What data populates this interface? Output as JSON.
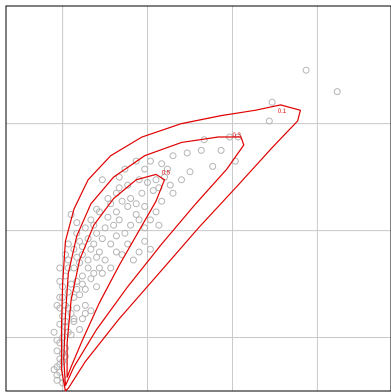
{
  "chart_data": {
    "type": "scatter",
    "title": "",
    "xlabel": "",
    "ylabel": "",
    "xlim": [
      0,
      6.8
    ],
    "ylim": [
      0,
      7.2
    ],
    "grid": true,
    "x_gridlines": [
      1,
      2.5,
      4,
      5.5
    ],
    "y_gridlines": [
      1,
      3,
      5
    ],
    "points_color": "#b4b4b4",
    "contour_color": "#e00000",
    "points": [
      [
        5.3,
        6.0
      ],
      [
        5.85,
        5.6
      ],
      [
        4.7,
        5.4
      ],
      [
        4.65,
        5.05
      ],
      [
        4.1,
        4.75
      ],
      [
        3.95,
        4.75
      ],
      [
        3.8,
        4.5
      ],
      [
        3.5,
        4.7
      ],
      [
        3.45,
        4.5
      ],
      [
        3.2,
        4.45
      ],
      [
        2.95,
        4.4
      ],
      [
        2.55,
        4.3
      ],
      [
        2.3,
        4.3
      ],
      [
        2.75,
        4.25
      ],
      [
        3.25,
        4.1
      ],
      [
        4.05,
        4.3
      ],
      [
        3.65,
        4.2
      ],
      [
        2.8,
        4.0
      ],
      [
        2.65,
        3.95
      ],
      [
        2.5,
        3.9
      ],
      [
        2.1,
        4.15
      ],
      [
        2.0,
        4.0
      ],
      [
        1.7,
        3.95
      ],
      [
        2.95,
        3.7
      ],
      [
        2.7,
        3.8
      ],
      [
        2.6,
        3.75
      ],
      [
        2.4,
        3.7
      ],
      [
        2.2,
        3.6
      ],
      [
        2.05,
        3.55
      ],
      [
        2.15,
        3.45
      ],
      [
        1.95,
        3.35
      ],
      [
        2.3,
        3.3
      ],
      [
        2.65,
        3.35
      ],
      [
        2.55,
        3.2
      ],
      [
        2.45,
        3.05
      ],
      [
        2.2,
        3.1
      ],
      [
        2.1,
        2.95
      ],
      [
        2.45,
        2.8
      ],
      [
        2.55,
        2.65
      ],
      [
        1.8,
        3.6
      ],
      [
        1.65,
        3.35
      ],
      [
        1.5,
        3.2
      ],
      [
        1.9,
        3.1
      ],
      [
        1.75,
        3.05
      ],
      [
        1.6,
        2.95
      ],
      [
        1.4,
        3.05
      ],
      [
        1.25,
        3.15
      ],
      [
        1.15,
        3.3
      ],
      [
        1.7,
        2.85
      ],
      [
        1.55,
        2.75
      ],
      [
        1.5,
        2.65
      ],
      [
        1.95,
        2.6
      ],
      [
        2.05,
        2.55
      ],
      [
        1.3,
        2.8
      ],
      [
        1.2,
        2.65
      ],
      [
        1.35,
        2.55
      ],
      [
        1.45,
        2.45
      ],
      [
        1.6,
        2.5
      ],
      [
        1.75,
        2.45
      ],
      [
        1.85,
        2.3
      ],
      [
        1.1,
        2.45
      ],
      [
        1.3,
        2.4
      ],
      [
        1.2,
        2.3
      ],
      [
        1.45,
        2.3
      ],
      [
        1.55,
        2.2
      ],
      [
        1.35,
        2.15
      ],
      [
        1.25,
        2.05
      ],
      [
        1.05,
        2.15
      ],
      [
        1.15,
        2.0
      ],
      [
        1.4,
        1.9
      ],
      [
        1.6,
        1.95
      ],
      [
        1.3,
        1.8
      ],
      [
        1.2,
        1.75
      ],
      [
        1.1,
        1.85
      ],
      [
        1.0,
        1.95
      ],
      [
        0.95,
        1.75
      ],
      [
        1.05,
        1.6
      ],
      [
        1.25,
        1.55
      ],
      [
        1.4,
        1.6
      ],
      [
        1.5,
        1.5
      ],
      [
        1.15,
        1.45
      ],
      [
        1.0,
        1.4
      ],
      [
        0.95,
        1.25
      ],
      [
        1.05,
        1.2
      ],
      [
        1.3,
        1.15
      ],
      [
        1.2,
        1.3
      ],
      [
        1.35,
        1.35
      ],
      [
        1.15,
        1.05
      ],
      [
        1.0,
        1.0
      ],
      [
        0.95,
        0.9
      ],
      [
        1.05,
        0.8
      ],
      [
        0.9,
        0.75
      ],
      [
        0.95,
        0.6
      ],
      [
        1.0,
        0.55
      ],
      [
        0.9,
        0.45
      ],
      [
        0.95,
        0.35
      ],
      [
        1.0,
        0.25
      ],
      [
        0.9,
        0.2
      ],
      [
        0.95,
        0.5
      ],
      [
        1.05,
        0.65
      ],
      [
        0.9,
        1.6
      ],
      [
        0.85,
        1.1
      ],
      [
        0.9,
        0.95
      ],
      [
        0.85,
        0.4
      ],
      [
        1.0,
        1.75
      ],
      [
        1.1,
        2.75
      ],
      [
        0.95,
        2.3
      ],
      [
        1.05,
        2.55
      ],
      [
        0.95,
        2.05
      ],
      [
        1.55,
        3.1
      ],
      [
        1.85,
        2.75
      ],
      [
        1.65,
        2.6
      ],
      [
        1.7,
        2.2
      ],
      [
        1.35,
        2.7
      ],
      [
        1.25,
        2.95
      ],
      [
        1.45,
        2.85
      ],
      [
        1.6,
        3.4
      ],
      [
        1.8,
        3.25
      ],
      [
        2.0,
        3.8
      ],
      [
        2.35,
        3.95
      ],
      [
        2.45,
        4.15
      ],
      [
        2.15,
        3.85
      ],
      [
        1.95,
        3.7
      ],
      [
        1.85,
        3.5
      ],
      [
        2.3,
        3.5
      ],
      [
        2.75,
        3.55
      ],
      [
        2.45,
        3.45
      ],
      [
        2.35,
        3.2
      ],
      [
        2.0,
        3.2
      ],
      [
        2.15,
        2.75
      ],
      [
        1.95,
        2.9
      ],
      [
        2.7,
        3.1
      ],
      [
        2.35,
        2.6
      ],
      [
        2.25,
        2.45
      ],
      [
        1.65,
        2.3
      ],
      [
        1.25,
        2.5
      ],
      [
        1.1,
        2.3
      ],
      [
        1.35,
        2.0
      ],
      [
        1.5,
        2.1
      ],
      [
        1.1,
        1.55
      ],
      [
        1.2,
        1.35
      ],
      [
        1.05,
        1.3
      ],
      [
        0.95,
        1.55
      ],
      [
        1.1,
        1.1
      ],
      [
        1.25,
        1.9
      ],
      [
        1.4,
        1.45
      ],
      [
        1.0,
        0.7
      ],
      [
        0.9,
        0.3
      ],
      [
        1.0,
        0.15
      ],
      [
        2.9,
        3.85
      ],
      [
        3.1,
        3.95
      ],
      [
        2.85,
        4.15
      ]
    ],
    "contours": [
      {
        "label": "0.1",
        "label_point": [
          4.8,
          5.2
        ],
        "path": [
          [
            1.05,
            0.0
          ],
          [
            0.98,
            0.4
          ],
          [
            0.98,
            1.2
          ],
          [
            1.0,
            2.0
          ],
          [
            1.05,
            2.8
          ],
          [
            1.2,
            3.4
          ],
          [
            1.45,
            3.95
          ],
          [
            1.85,
            4.4
          ],
          [
            2.4,
            4.75
          ],
          [
            3.1,
            5.0
          ],
          [
            3.8,
            5.15
          ],
          [
            4.4,
            5.25
          ],
          [
            4.85,
            5.35
          ],
          [
            5.2,
            5.25
          ],
          [
            5.15,
            5.05
          ],
          [
            4.7,
            4.55
          ],
          [
            4.1,
            3.85
          ],
          [
            3.4,
            3.05
          ],
          [
            2.7,
            2.2
          ],
          [
            2.0,
            1.35
          ],
          [
            1.4,
            0.55
          ],
          [
            1.1,
            0.05
          ],
          [
            1.05,
            0.0
          ]
        ]
      },
      {
        "label": "0.3",
        "label_point": [
          4.0,
          4.75
        ],
        "path": [
          [
            1.05,
            0.1
          ],
          [
            1.02,
            0.6
          ],
          [
            1.05,
            1.4
          ],
          [
            1.1,
            2.2
          ],
          [
            1.25,
            2.9
          ],
          [
            1.5,
            3.5
          ],
          [
            1.9,
            4.0
          ],
          [
            2.45,
            4.4
          ],
          [
            3.1,
            4.65
          ],
          [
            3.75,
            4.75
          ],
          [
            4.15,
            4.75
          ],
          [
            4.2,
            4.6
          ],
          [
            3.9,
            4.15
          ],
          [
            3.35,
            3.5
          ],
          [
            2.75,
            2.75
          ],
          [
            2.15,
            1.95
          ],
          [
            1.6,
            1.15
          ],
          [
            1.2,
            0.45
          ],
          [
            1.05,
            0.1
          ]
        ]
      },
      {
        "label": "0.5",
        "label_point": [
          2.75,
          4.05
        ],
        "path": [
          [
            1.08,
            0.25
          ],
          [
            1.08,
            0.9
          ],
          [
            1.15,
            1.7
          ],
          [
            1.3,
            2.45
          ],
          [
            1.55,
            3.1
          ],
          [
            1.9,
            3.6
          ],
          [
            2.3,
            3.95
          ],
          [
            2.65,
            4.05
          ],
          [
            2.8,
            3.95
          ],
          [
            2.65,
            3.55
          ],
          [
            2.35,
            3.0
          ],
          [
            2.0,
            2.35
          ],
          [
            1.65,
            1.65
          ],
          [
            1.35,
            0.95
          ],
          [
            1.15,
            0.45
          ],
          [
            1.08,
            0.25
          ]
        ]
      }
    ]
  }
}
